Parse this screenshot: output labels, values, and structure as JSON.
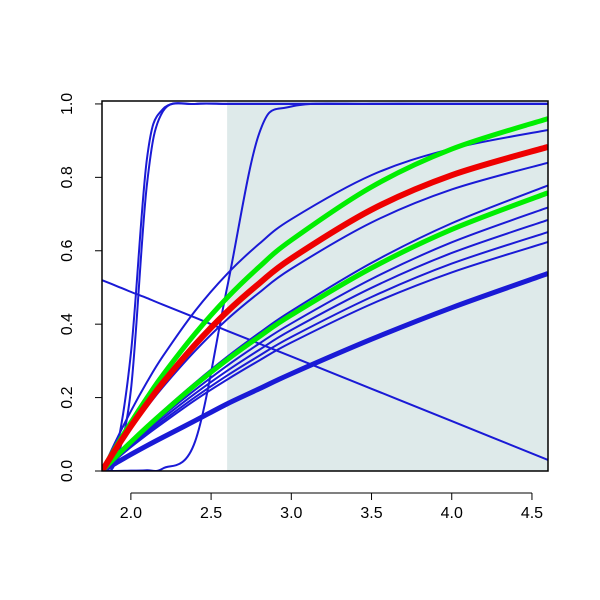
{
  "chart_data": {
    "type": "line",
    "x": [
      1.82,
      1.9,
      2.0,
      2.1,
      2.2,
      2.4,
      2.6,
      2.8,
      3.0,
      3.5,
      4.0,
      4.6
    ],
    "series": [
      {
        "color": "#1a1ad6",
        "width": 2,
        "values": [
          0.005,
          0.04,
          0.32,
          0.85,
          0.986,
          1,
          1,
          1,
          1,
          1,
          1,
          1
        ]
      },
      {
        "color": "#1a1ad6",
        "width": 2,
        "values": [
          0.003,
          0.02,
          0.22,
          0.78,
          0.98,
          1,
          1,
          1,
          1,
          1,
          1,
          1
        ]
      },
      {
        "color": "#1a1ad6",
        "width": 2,
        "values": [
          0,
          0,
          0.001,
          0.002,
          0.007,
          0.08,
          0.5,
          0.92,
          0.993,
          1,
          1,
          1
        ]
      },
      {
        "color": "#1a1ad6",
        "width": 2,
        "values": [
          0.52,
          0.506,
          0.488,
          0.471,
          0.453,
          0.418,
          0.382,
          0.347,
          0.312,
          0.224,
          0.136,
          0.03
        ]
      },
      {
        "color": "#1a1ad6",
        "width": 2,
        "values": [
          0,
          0.076,
          0.163,
          0.242,
          0.313,
          0.436,
          0.537,
          0.619,
          0.686,
          0.806,
          0.878,
          0.929
        ]
      },
      {
        "color": "#1a1ad6",
        "width": 2,
        "values": [
          0,
          0.053,
          0.116,
          0.174,
          0.229,
          0.327,
          0.413,
          0.486,
          0.551,
          0.677,
          0.767,
          0.84
        ]
      },
      {
        "color": "#1a1ad6",
        "width": 2,
        "values": [
          0,
          0.037,
          0.081,
          0.123,
          0.164,
          0.24,
          0.311,
          0.376,
          0.436,
          0.567,
          0.675,
          0.778
        ]
      },
      {
        "color": "#1a1ad6",
        "width": 2,
        "values": [
          0,
          0.034,
          0.074,
          0.113,
          0.151,
          0.221,
          0.287,
          0.347,
          0.402,
          0.523,
          0.623,
          0.718
        ]
      },
      {
        "color": "#1a1ad6",
        "width": 2,
        "values": [
          0,
          0.032,
          0.071,
          0.108,
          0.144,
          0.211,
          0.273,
          0.33,
          0.384,
          0.499,
          0.594,
          0.684
        ]
      },
      {
        "color": "#1a1ad6",
        "width": 2,
        "values": [
          0,
          0.031,
          0.067,
          0.103,
          0.137,
          0.201,
          0.26,
          0.314,
          0.365,
          0.474,
          0.565,
          0.651
        ]
      },
      {
        "color": "#1a1ad6",
        "width": 2,
        "values": [
          0,
          0.029,
          0.065,
          0.099,
          0.131,
          0.193,
          0.249,
          0.301,
          0.35,
          0.455,
          0.541,
          0.624
        ]
      },
      {
        "color": "#1a1ad6",
        "width": 5,
        "values": [
          0,
          0.02,
          0.045,
          0.069,
          0.092,
          0.137,
          0.183,
          0.224,
          0.265,
          0.359,
          0.445,
          0.538
        ]
      },
      {
        "color": "#00ee00",
        "width": 5,
        "values": [
          0,
          0.061,
          0.132,
          0.199,
          0.262,
          0.374,
          0.472,
          0.556,
          0.629,
          0.774,
          0.877,
          0.96
        ]
      },
      {
        "color": "#00ee00",
        "width": 5,
        "values": [
          0,
          0.036,
          0.079,
          0.12,
          0.159,
          0.234,
          0.303,
          0.366,
          0.425,
          0.553,
          0.658,
          0.758
        ]
      },
      {
        "color": "#ee0000",
        "width": 6,
        "values": [
          0,
          0.056,
          0.122,
          0.183,
          0.241,
          0.344,
          0.434,
          0.511,
          0.579,
          0.712,
          0.806,
          0.883
        ]
      }
    ],
    "shade_x": [
      2.6,
      4.6
    ],
    "shade_color": "#deeaea",
    "xlim": [
      1.82,
      4.6
    ],
    "ylim": [
      0,
      1.008
    ],
    "xticks": [
      {
        "value": 2,
        "label": "2.0"
      },
      {
        "value": 2.5,
        "label": "2.5"
      },
      {
        "value": 3,
        "label": "3.0"
      },
      {
        "value": 3.5,
        "label": "3.5"
      },
      {
        "value": 4,
        "label": "4.0"
      },
      {
        "value": 4.5,
        "label": "4.5"
      }
    ],
    "yticks": [
      {
        "value": 0,
        "label": "0.0"
      },
      {
        "value": 0.2,
        "label": "0.2"
      },
      {
        "value": 0.4,
        "label": "0.4"
      },
      {
        "value": 0.6,
        "label": "0.6"
      },
      {
        "value": 0.8,
        "label": "0.8"
      },
      {
        "value": 1,
        "label": "1.0"
      }
    ]
  }
}
